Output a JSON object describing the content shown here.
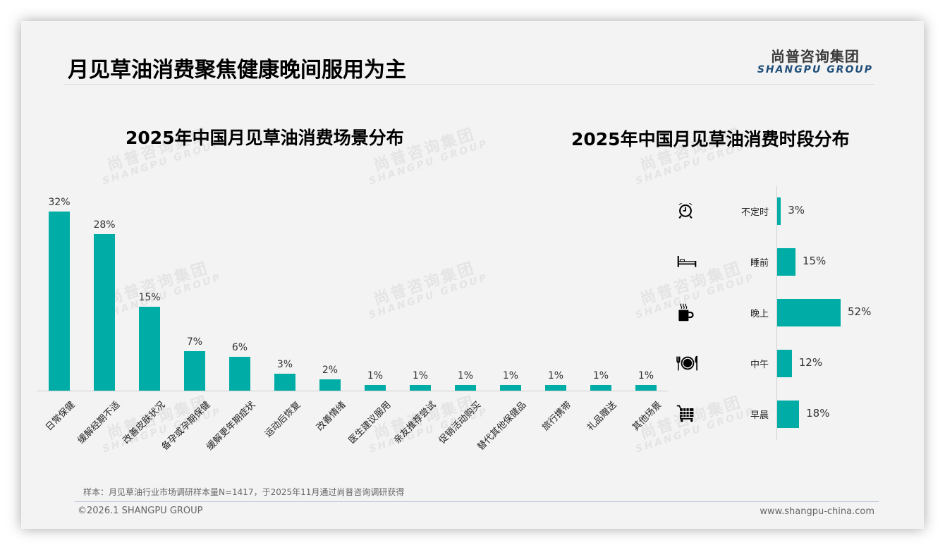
{
  "page": {
    "title": "月见草油消费聚焦健康晚间服用为主",
    "logo": {
      "cn": "尚普咨询集团",
      "en": "SHANGPU GROUP"
    },
    "watermark": {
      "cn": "尚普咨询集团",
      "en": "SHANGPU GROUP"
    },
    "note": "样本：月见草油行业市场调研样本量N=1417，于2025年11月通过尚普咨询调研获得",
    "copyright": "©2026.1 SHANGPU GROUP",
    "website": "www.shangpu-china.com",
    "accent_color": "#00ada6"
  },
  "chart_data": [
    {
      "type": "bar",
      "title": "2025年中国月见草油消费场景分布",
      "xlabel": "",
      "ylabel": "",
      "ylim": [
        0,
        35
      ],
      "grid": false,
      "legend": "none",
      "categories": [
        "日常保健",
        "缓解经期不适",
        "改善皮肤状况",
        "备孕或孕期保健",
        "缓解更年期症状",
        "运动后恢复",
        "改善情绪",
        "医生建议服用",
        "亲友推荐尝试",
        "促销活动购买",
        "替代其他保健品",
        "旅行携带",
        "礼品赠送",
        "其他场景"
      ],
      "values": [
        32,
        28,
        15,
        7,
        6,
        3,
        2,
        1,
        1,
        1,
        1,
        1,
        1,
        1
      ],
      "labels": [
        "32%",
        "28%",
        "15%",
        "7%",
        "6%",
        "3%",
        "2%",
        "1%",
        "1%",
        "1%",
        "1%",
        "1%",
        "1%",
        "1%"
      ],
      "color": "#00ada6"
    },
    {
      "type": "bar",
      "orientation": "horizontal",
      "title": "2025年中国月见草油消费时段分布",
      "xlabel": "",
      "ylabel": "",
      "xlim": [
        0,
        60
      ],
      "grid": false,
      "legend": "none",
      "categories": [
        "不定时",
        "睡前",
        "晚上",
        "中午",
        "早晨"
      ],
      "icons": [
        "alarm-clock-icon",
        "bed-icon",
        "hot-coffee-mug-icon",
        "plate-cutlery-icon",
        "shopping-cart-icon"
      ],
      "values": [
        3,
        15,
        52,
        12,
        18
      ],
      "labels": [
        "3%",
        "15%",
        "52%",
        "12%",
        "18%"
      ],
      "color": "#00ada6"
    }
  ]
}
